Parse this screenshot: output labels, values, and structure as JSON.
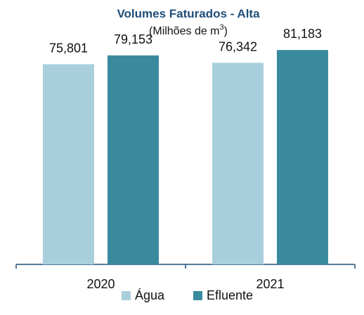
{
  "chart_data": {
    "type": "bar",
    "title": "Volumes Faturados -  Alta",
    "subtitle_main": "(Milhões de m",
    "subtitle_sup": "3",
    "subtitle_end": ")",
    "categories": [
      "2020",
      "2021"
    ],
    "series": [
      {
        "name": "Água",
        "color": "#a9cfdc",
        "values": [
          75.801,
          76.342
        ],
        "labels": [
          "75,801",
          "76,342"
        ]
      },
      {
        "name": "Efluente",
        "color": "#3a8a9e",
        "values": [
          79.153,
          81.183
        ],
        "labels": [
          "79,153",
          "81,183"
        ]
      }
    ],
    "ylim": [
      0,
      98
    ],
    "grid": false,
    "legend_position": "bottom",
    "title_color": "#1f4e79",
    "axis_color": "#1f4e79"
  }
}
